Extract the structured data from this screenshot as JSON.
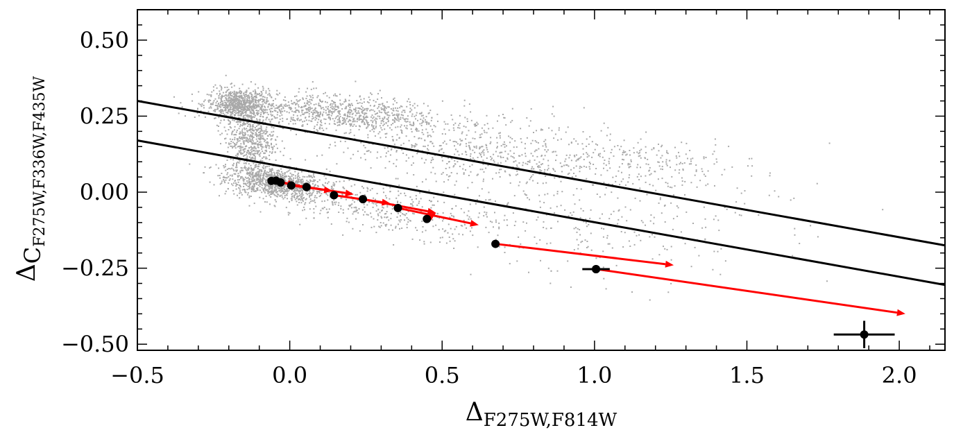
{
  "chart_data": {
    "type": "scatter",
    "title": "",
    "xlabel": {
      "main": "Δ",
      "sub": "F275W,F814W"
    },
    "ylabel": {
      "main": "Δ",
      "mid": "C",
      "sub": "F275W,F336W,F435W"
    },
    "xlim": [
      -0.5,
      2.15
    ],
    "ylim": [
      -0.52,
      0.6
    ],
    "x_ticks": [
      -0.5,
      0.0,
      0.5,
      1.0,
      1.5,
      2.0
    ],
    "x_tick_labels": [
      "−0.5",
      "0.0",
      "0.5",
      "1.0",
      "1.5",
      "2.0"
    ],
    "y_ticks": [
      0.5,
      0.25,
      0.0,
      -0.25,
      -0.5
    ],
    "y_tick_labels": [
      "0.50",
      "0.25",
      "0.00",
      "−0.25",
      "−0.50"
    ],
    "grid": false,
    "lines": [
      {
        "x": [
          -0.5,
          2.15
        ],
        "y": [
          0.3,
          -0.175
        ]
      },
      {
        "x": [
          -0.5,
          2.15
        ],
        "y": [
          0.17,
          -0.305
        ]
      }
    ],
    "points": {
      "x": [
        -0.06,
        -0.045,
        -0.03,
        0.005,
        0.055,
        0.145,
        0.24,
        0.355,
        0.45,
        0.675,
        1.005
      ],
      "y": [
        0.037,
        0.038,
        0.032,
        0.022,
        0.017,
        -0.01,
        -0.023,
        -0.052,
        -0.088,
        -0.17,
        -0.253
      ]
    },
    "arrows": [
      {
        "from": [
          -0.045,
          0.038
        ],
        "to": [
          0.02,
          0.022
        ]
      },
      {
        "from": [
          -0.03,
          0.032
        ],
        "to": [
          0.08,
          0.012
        ]
      },
      {
        "from": [
          0.005,
          0.022
        ],
        "to": [
          0.14,
          0.004
        ]
      },
      {
        "from": [
          0.055,
          0.017
        ],
        "to": [
          0.21,
          -0.007
        ]
      },
      {
        "from": [
          0.145,
          -0.01
        ],
        "to": [
          0.33,
          -0.037
        ]
      },
      {
        "from": [
          0.24,
          -0.023
        ],
        "to": [
          0.48,
          -0.068
        ]
      },
      {
        "from": [
          0.355,
          -0.052
        ],
        "to": [
          0.62,
          -0.108
        ]
      },
      {
        "from": [
          0.45,
          -0.088
        ],
        "to": [
          0.48,
          -0.068
        ]
      },
      {
        "from": [
          0.675,
          -0.17
        ],
        "to": [
          1.26,
          -0.24
        ]
      },
      {
        "from": [
          1.005,
          -0.253
        ],
        "to": [
          2.02,
          -0.4
        ]
      }
    ],
    "error_bars": [
      {
        "x": 1.005,
        "y": -0.253,
        "xerr": 0.045,
        "yerr": 0.012
      },
      {
        "x": 1.885,
        "y": -0.468,
        "xerr": 0.1,
        "yerr": 0.045
      }
    ],
    "colors": {
      "points": "#000000",
      "lines": "#000000",
      "arrows": "#ff0000",
      "background_stars": "#a9a9a9"
    }
  }
}
